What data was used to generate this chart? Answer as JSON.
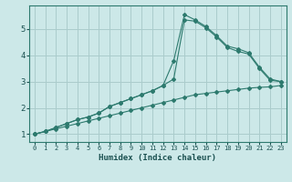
{
  "xlabel": "Humidex (Indice chaleur)",
  "bg_color": "#cce8e8",
  "grid_color": "#aacccc",
  "line_color": "#2d7a6e",
  "xlim": [
    -0.5,
    23.5
  ],
  "ylim": [
    0.7,
    5.9
  ],
  "yticks": [
    1,
    2,
    3,
    4,
    5
  ],
  "x": [
    0,
    1,
    2,
    3,
    4,
    5,
    6,
    7,
    8,
    9,
    10,
    11,
    12,
    13,
    14,
    15,
    16,
    17,
    18,
    19,
    20,
    21,
    22,
    23
  ],
  "line1": [
    1.0,
    1.1,
    1.2,
    1.3,
    1.4,
    1.5,
    1.6,
    1.7,
    1.8,
    1.9,
    2.0,
    2.1,
    2.2,
    2.3,
    2.4,
    2.5,
    2.55,
    2.6,
    2.65,
    2.7,
    2.75,
    2.78,
    2.8,
    2.85
  ],
  "line2": [
    1.0,
    1.1,
    1.25,
    1.4,
    1.55,
    1.65,
    1.8,
    2.05,
    2.2,
    2.35,
    2.5,
    2.65,
    2.85,
    3.1,
    5.35,
    5.3,
    5.05,
    4.7,
    4.3,
    4.15,
    4.05,
    3.5,
    3.05,
    3.0
  ],
  "line3": [
    1.0,
    1.1,
    1.25,
    1.4,
    1.55,
    1.65,
    1.8,
    2.05,
    2.2,
    2.35,
    2.5,
    2.65,
    2.85,
    3.8,
    5.55,
    5.35,
    5.1,
    4.75,
    4.35,
    4.25,
    4.1,
    3.55,
    3.1,
    3.0
  ]
}
